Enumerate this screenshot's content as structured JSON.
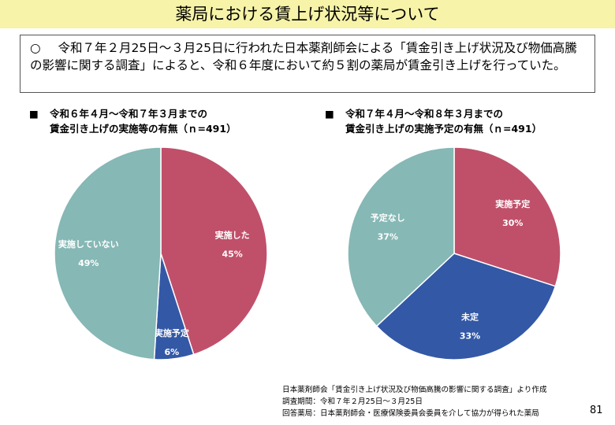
{
  "title": "薬局における賃上げ状況等について",
  "summary": {
    "mark": "○",
    "text": "令和７年２月25日～３月25日に行われた日本薬剤師会による「賃金引き上げ状況及び物価高騰の影響に関する調査」によると、令和６年度において約５割の薬局が賃金引き上げを行っていた。"
  },
  "chart_data": [
    {
      "type": "pie",
      "title_line1": "令和６年４月～令和７年３月までの",
      "title_line2": "賃金引き上げの実施等の有無（ｎ=491）",
      "bullet": "■",
      "slices": [
        {
          "label": "実施した",
          "value": 45,
          "value_label": "45%",
          "color": "#c0506a"
        },
        {
          "label": "実施予定",
          "value": 6,
          "value_label": "6%",
          "color": "#3358a6"
        },
        {
          "label": "実施していない",
          "value": 49,
          "value_label": "49%",
          "color": "#86b8b5"
        }
      ]
    },
    {
      "type": "pie",
      "title_line1": "令和７年４月～令和８年３月までの",
      "title_line2": "賃金引き上げの実施予定の有無（ｎ=491）",
      "bullet": "■",
      "slices": [
        {
          "label": "実施予定",
          "value": 30,
          "value_label": "30%",
          "color": "#c0506a"
        },
        {
          "label": "未定",
          "value": 33,
          "value_label": "33%",
          "color": "#3358a6"
        },
        {
          "label": "予定なし",
          "value": 37,
          "value_label": "37%",
          "color": "#86b8b5"
        }
      ]
    }
  ],
  "footer": {
    "source": "日本薬剤師会「賃金引き上げ状況及び物価高騰の影響に関する調査」より作成",
    "period": "調査期間：令和７年２月25日～３月25日",
    "respondents": "回答薬局：日本薬剤師会・医療保険委員会委員を介して協力が得られた薬局"
  },
  "page_number": "81"
}
